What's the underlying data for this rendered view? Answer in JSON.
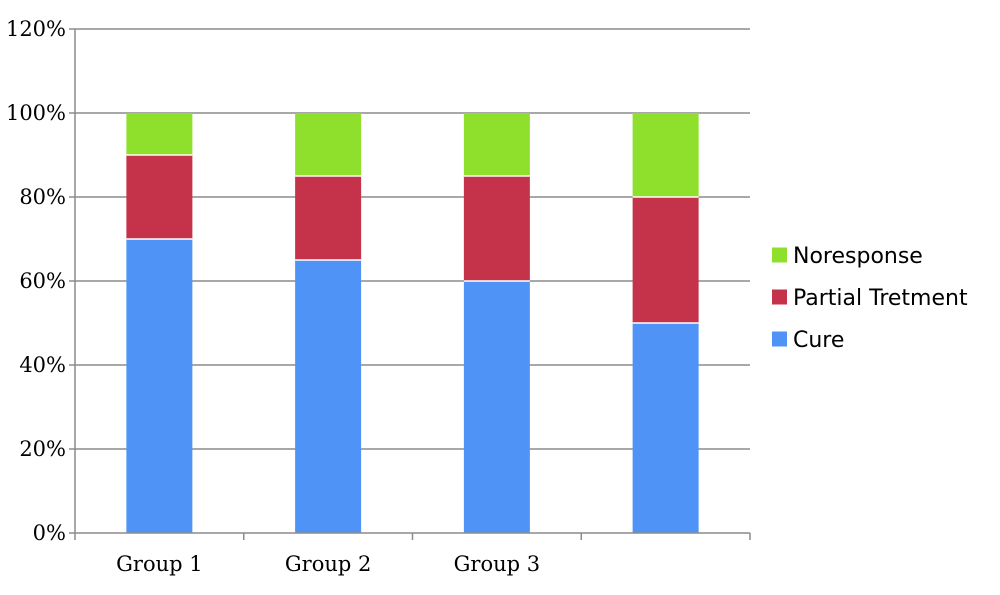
{
  "chart_data": {
    "type": "bar",
    "stacked": true,
    "categories": [
      "Group 1",
      "Group 2",
      "Group 3",
      ""
    ],
    "series": [
      {
        "name": "Cure",
        "values": [
          70,
          65,
          60,
          50
        ],
        "color": "#4f93f7"
      },
      {
        "name": "Partial Tretment",
        "values": [
          20,
          20,
          25,
          30
        ],
        "color": "#c4334a"
      },
      {
        "name": "Noresponse",
        "values": [
          10,
          15,
          15,
          20
        ],
        "color": "#8ee02c"
      }
    ],
    "title": "",
    "xlabel": "",
    "ylabel": "",
    "ylim": [
      0,
      120
    ],
    "yticks": [
      "0%",
      "20%",
      "40%",
      "60%",
      "80%",
      "100%",
      "120%"
    ],
    "grid": true,
    "legend": {
      "position": "right",
      "order": [
        "Noresponse",
        "Partial Tretment",
        "Cure"
      ]
    },
    "colors": {
      "grid": "#8c8c8c",
      "axis": "#8c8c8c"
    }
  }
}
